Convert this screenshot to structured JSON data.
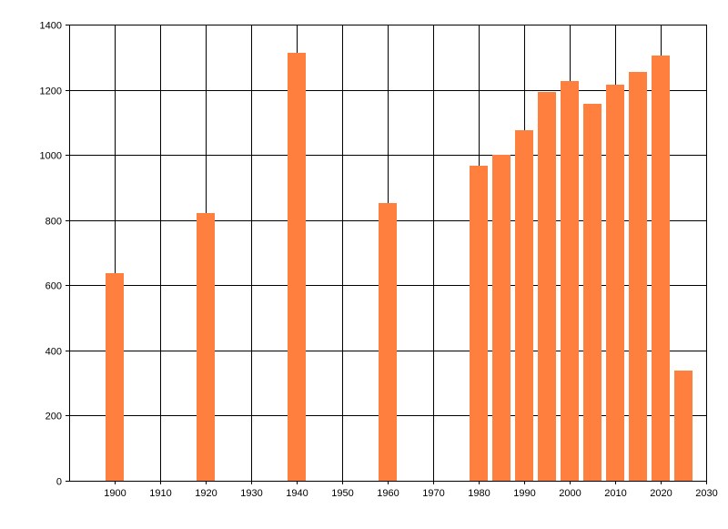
{
  "chart_data": {
    "type": "bar",
    "title": "",
    "xlabel": "",
    "ylabel": "",
    "xlim": [
      1890,
      2030
    ],
    "ylim": [
      0,
      1400
    ],
    "x_ticks": [
      "1900",
      "1910",
      "1920",
      "1930",
      "1940",
      "1950",
      "1960",
      "1970",
      "1980",
      "1990",
      "2000",
      "2010",
      "2020",
      "2030"
    ],
    "y_ticks": [
      "0",
      "200",
      "400",
      "600",
      "800",
      "1000",
      "1200",
      "1400"
    ],
    "grid": true,
    "legend": "none",
    "bar_color": "#ff7f3f",
    "series": [
      {
        "x": [
          1900,
          1920,
          1940,
          1960,
          1980,
          1985,
          1990,
          1995,
          2000,
          2005,
          2010,
          2015,
          2020,
          2025
        ],
        "values": [
          636,
          821,
          1313,
          852,
          967,
          1000,
          1076,
          1193,
          1228,
          1158,
          1216,
          1255,
          1305,
          338
        ]
      }
    ]
  }
}
